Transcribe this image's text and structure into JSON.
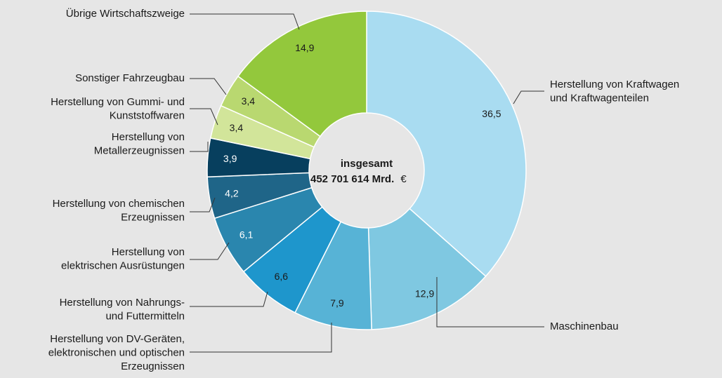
{
  "chart_data": {
    "type": "pie",
    "donut": true,
    "center_title": "insgesamt",
    "center_value": "452 701 614 Mrd.",
    "center_unit": "€",
    "categories": [
      [
        "Herstellung von Kraftwagen",
        "und Kraftwagenteilen"
      ],
      [
        "Maschinenbau"
      ],
      [
        "Herstellung von DV-Geräten,",
        "elektronischen und optischen",
        "Erzeugnissen"
      ],
      [
        "Herstellung von Nahrungs-",
        "und Futtermitteln"
      ],
      [
        "Herstellung von",
        "elektrischen Ausrüstungen"
      ],
      [
        "Herstellung von chemischen",
        "Erzeugnissen"
      ],
      [
        "Herstellung von",
        "Metallerzeugnissen"
      ],
      [
        "Herstellung von Gummi- und",
        "Kunststoffwaren"
      ],
      [
        "Sonstiger Fahrzeugbau"
      ],
      [
        "Übrige Wirtschaftszweige"
      ]
    ],
    "values": [
      36.5,
      12.9,
      7.9,
      6.6,
      6.1,
      4.2,
      3.9,
      3.4,
      3.4,
      14.9
    ],
    "value_labels": [
      "36,5",
      "12,9",
      "7,9",
      "6,6",
      "6,1",
      "4,2",
      "3,9",
      "3,4",
      "3,4",
      "14,9"
    ],
    "colors": [
      "#a9dcf1",
      "#7fc8e1",
      "#57b3d6",
      "#1e96cc",
      "#2a86ae",
      "#1f6588",
      "#073f5e",
      "#d2e59a",
      "#b9d870",
      "#93c83c"
    ]
  }
}
